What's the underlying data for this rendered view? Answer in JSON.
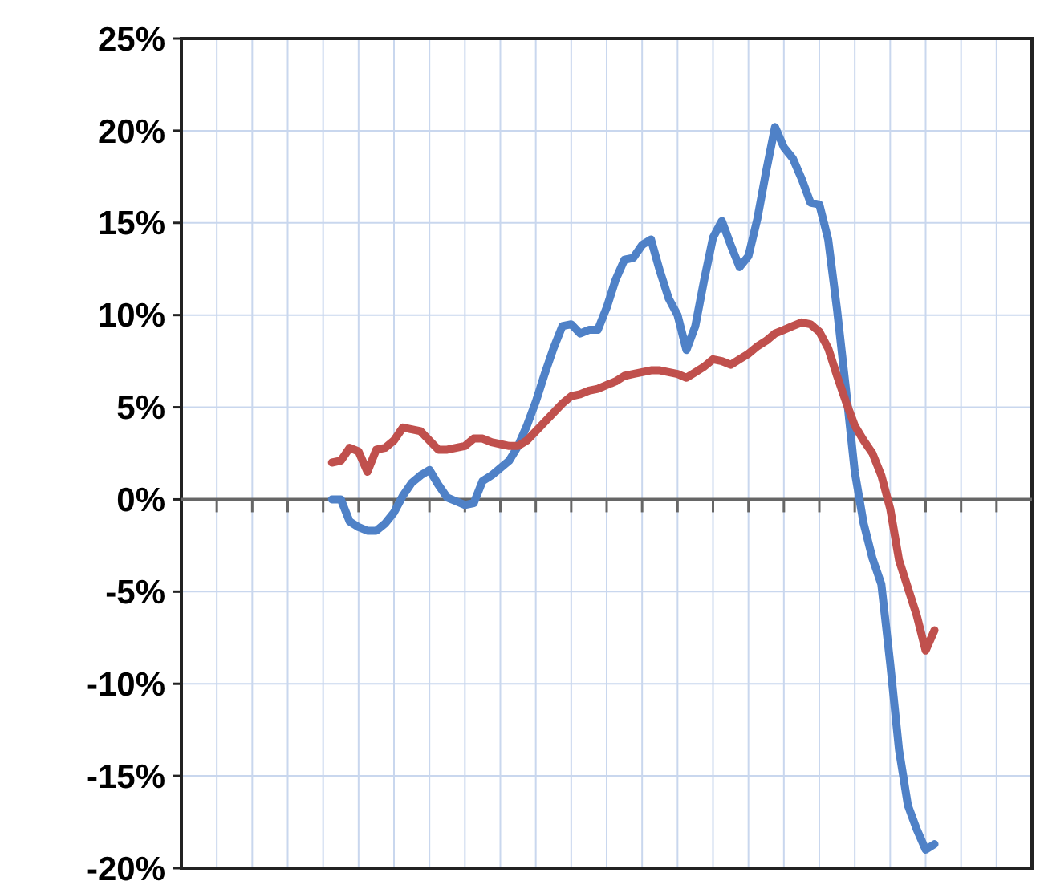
{
  "chart_data": {
    "type": "line",
    "categories": [
      null,
      null,
      null,
      null,
      null,
      null,
      null,
      null,
      null,
      null,
      null,
      null,
      null,
      null,
      null,
      null,
      null,
      null,
      null,
      null,
      null,
      null,
      null,
      null,
      null,
      null,
      null,
      null,
      null,
      null,
      null,
      null,
      null,
      null,
      null,
      null,
      null,
      null,
      null,
      null,
      null,
      null,
      null,
      null,
      null,
      null,
      null,
      null,
      null,
      null,
      null,
      null,
      null,
      null,
      null,
      null,
      null,
      null,
      null,
      null,
      null,
      null,
      null,
      null,
      null,
      null,
      null,
      null,
      null,
      null,
      null,
      null,
      null,
      null,
      null,
      null,
      null,
      null,
      null,
      null,
      null,
      null,
      null,
      null,
      null,
      null,
      null,
      null,
      null,
      null,
      null,
      null,
      null,
      null,
      null,
      null,
      null
    ],
    "ylim": [
      -20,
      25
    ],
    "yticks": [
      {
        "value": -20,
        "label": "-20%"
      },
      {
        "value": -15,
        "label": "-15%"
      },
      {
        "value": -10,
        "label": "-10%"
      },
      {
        "value": -5,
        "label": "-5%"
      },
      {
        "value": 0,
        "label": "0%"
      },
      {
        "value": 5,
        "label": "5%"
      },
      {
        "value": 10,
        "label": "10%"
      },
      {
        "value": 15,
        "label": "15%"
      },
      {
        "value": 20,
        "label": "20%"
      },
      {
        "value": 25,
        "label": "25%"
      }
    ],
    "tick_labels": "y",
    "grid": true,
    "marker": "none",
    "line_style": "solid",
    "series": [
      {
        "color": "#4f81c7",
        "values": [
          null,
          null,
          null,
          null,
          null,
          null,
          null,
          null,
          null,
          null,
          null,
          null,
          null,
          null,
          null,
          null,
          null,
          0.0,
          0.0,
          -1.2,
          -1.5,
          -1.7,
          -1.7,
          -1.3,
          -0.7,
          0.2,
          0.9,
          1.3,
          1.6,
          0.8,
          0.1,
          -0.1,
          -0.3,
          -0.2,
          1.0,
          1.3,
          1.7,
          2.1,
          2.9,
          4.0,
          5.3,
          6.8,
          8.2,
          9.4,
          9.5,
          9.0,
          9.2,
          9.2,
          10.4,
          11.9,
          13.0,
          13.1,
          13.8,
          14.1,
          12.4,
          10.9,
          10.0,
          8.1,
          9.4,
          11.9,
          14.2,
          15.1,
          13.8,
          12.6,
          13.2,
          15.2,
          17.8,
          20.2,
          19.1,
          18.5,
          17.4,
          16.1,
          16.0,
          14.1,
          10.3,
          6.0,
          1.5,
          -1.3,
          -3.2,
          -4.6,
          -8.9,
          -13.6,
          -16.6,
          -17.9,
          -19.0,
          -18.7,
          null,
          null,
          null,
          null,
          null,
          null,
          null,
          null,
          null,
          null,
          null
        ]
      },
      {
        "color": "#c0504d",
        "values": [
          null,
          null,
          null,
          null,
          null,
          null,
          null,
          null,
          null,
          null,
          null,
          null,
          null,
          null,
          null,
          null,
          null,
          2.0,
          2.1,
          2.8,
          2.6,
          1.5,
          2.7,
          2.8,
          3.2,
          3.9,
          3.8,
          3.7,
          3.2,
          2.7,
          2.7,
          2.8,
          2.9,
          3.3,
          3.3,
          3.1,
          3.0,
          2.9,
          2.9,
          3.2,
          3.7,
          4.2,
          4.7,
          5.2,
          5.6,
          5.7,
          5.9,
          6.0,
          6.2,
          6.4,
          6.7,
          6.8,
          6.9,
          7.0,
          7.0,
          6.9,
          6.8,
          6.6,
          6.9,
          7.2,
          7.6,
          7.5,
          7.3,
          7.6,
          7.9,
          8.3,
          8.6,
          9.0,
          9.2,
          9.4,
          9.6,
          9.5,
          9.1,
          8.2,
          6.7,
          5.3,
          4.0,
          3.2,
          2.5,
          1.3,
          -0.5,
          -3.3,
          -4.8,
          -6.3,
          -8.2,
          -7.1,
          null,
          null,
          null,
          null,
          null,
          null,
          null,
          null,
          null,
          null,
          null
        ]
      }
    ]
  }
}
